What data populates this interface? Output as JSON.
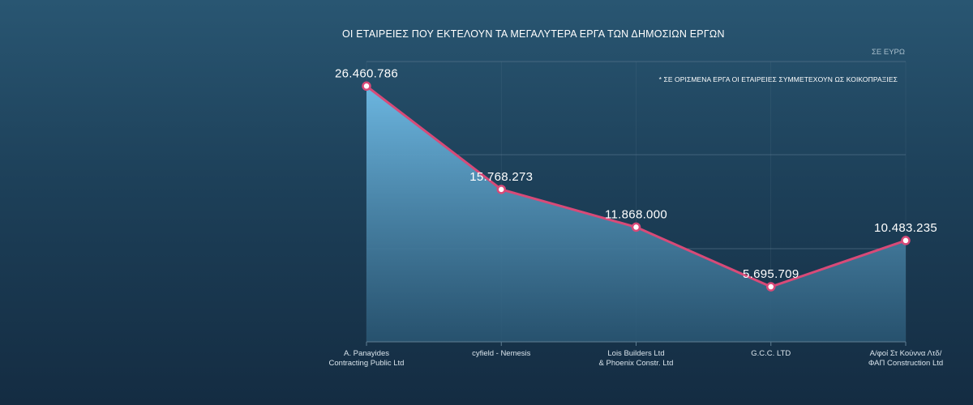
{
  "chart_data": {
    "type": "area",
    "title": "ΟΙ ΕΤΑΙΡΕΙΕΣ ΠΟΥ ΕΚΤΕΛΟΥΝ ΤΑ ΜΕΓΑΛΥΤΕΡΑ ΕΡΓΑ ΤΩΝ ΔΗΜΟΣΙΩΝ ΕΡΓΩΝ",
    "unit_label": "ΣΕ ΕΥΡΩ",
    "note": "* ΣΕ ΟΡΙΣΜΕΝΑ ΕΡΓΑ ΟΙ ΕΤΑΙΡΕΙΕΣ ΣΥΜΜΕΤΕΧΟΥΝ ΩΣ ΚΟΙΚΟΠΡΑΞΙΕΣ",
    "categories": [
      [
        "A. Panayides",
        "Contracting Public Ltd"
      ],
      [
        "cyfield - Nemesis"
      ],
      [
        "Lois Builders Ltd",
        "& Phoenix Constr. Ltd"
      ],
      [
        "G.C.C. LTD"
      ],
      [
        "Α/φοί Στ Κούννα Λτδ/",
        "ΦΑΠ Construction Ltd"
      ]
    ],
    "values": [
      26460786,
      15768273,
      11868000,
      5695709,
      10483235
    ],
    "value_labels": [
      "26.460.786",
      "15.768.273",
      "11.868.000",
      "5.695.709",
      "10.483.235"
    ],
    "ylim": [
      0,
      29000000
    ],
    "grid": "horizontal",
    "colors": {
      "line": "#d84a78",
      "fill_top": "#6cb6e0",
      "fill_bottom": "#2a5774",
      "marker_fill": "#ffffff",
      "grid": "#5f7e93"
    }
  }
}
